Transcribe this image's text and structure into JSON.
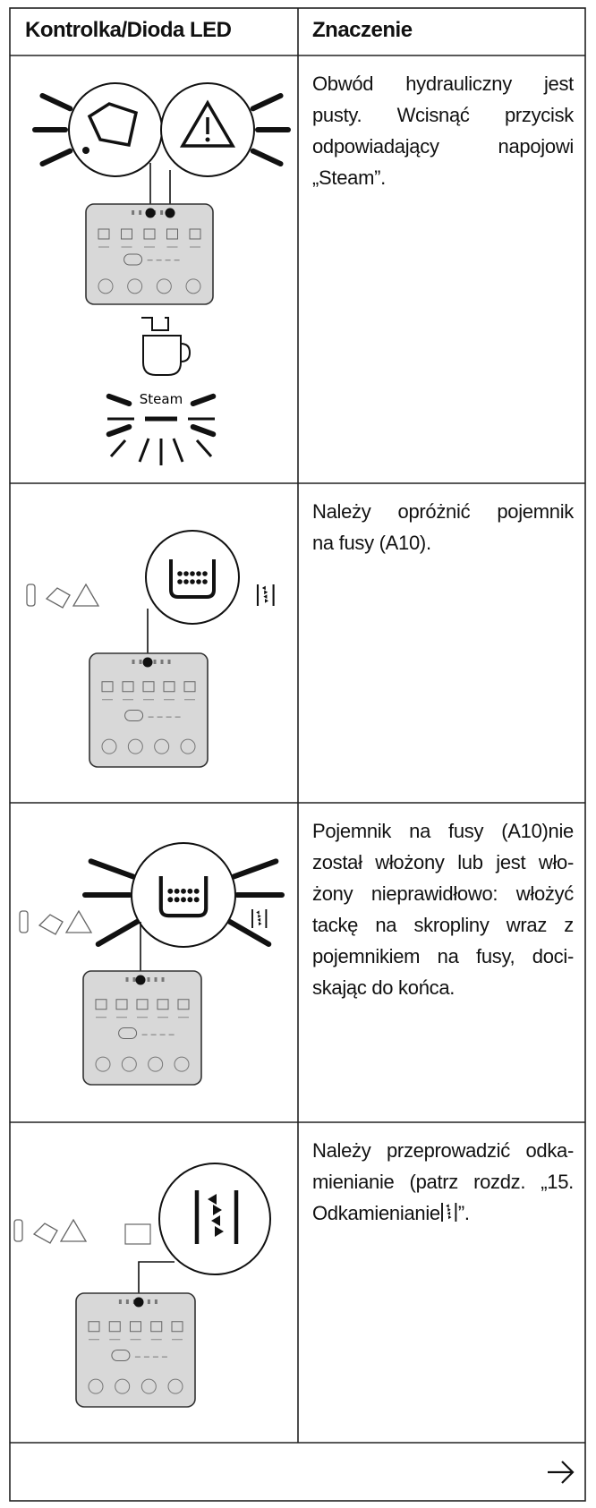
{
  "header": {
    "columns": [
      "Kontrolka/Dioda LED",
      "Znaczenie"
    ]
  },
  "rows": [
    {
      "illustration_label": "Steam",
      "lines": [
        "Obwód hydrauliczny jest",
        "pusty. Wcisnąć przycisk",
        "odpowiadający napojowi",
        "„Steam”."
      ]
    },
    {
      "lines": [
        "Należy opróżnić pojemnik",
        "na fusy (A10)."
      ]
    },
    {
      "lines": [
        "Pojemnik na fusy (A10)nie",
        "został włożony lub jest wło-",
        "żony nieprawidłowo: włożyć",
        "tackę na skropliny wraz z",
        "pojemnikiem na fusy, doci-",
        "skając do końca."
      ]
    },
    {
      "lines": [
        "Należy przeprowadzić odka-",
        "mienianie (patrz rozdz. „15."
      ],
      "last_line_parts": [
        "Odkamienianie",
        "”."
      ]
    }
  ]
}
